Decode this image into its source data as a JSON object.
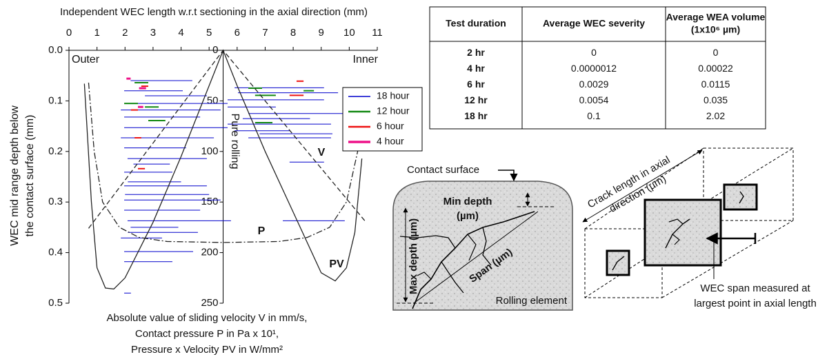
{
  "chart_data": [
    {
      "type": "segment",
      "xlabel": "Independent WEC length w.r.t sectioning in the axial direction (mm)",
      "ylabel": [
        "WEC mid range depth below",
        "the contact surface (mm)"
      ],
      "xlim": [
        0,
        11
      ],
      "xticks": [
        0,
        1,
        2,
        3,
        4,
        5,
        6,
        7,
        8,
        9,
        10,
        11
      ],
      "ylim": [
        0,
        0.5
      ],
      "yticks": [
        {
          "value": 0,
          "label": "0.0"
        },
        0.1,
        0.2,
        0.3,
        0.4,
        0.5
      ],
      "annotations": [
        "Outer",
        "Inner",
        "Pure rolling"
      ],
      "legend": "upper right",
      "series": [
        {
          "name": "18 hour",
          "color": "#0000cc",
          "line_width": 1,
          "x_start": [
            1.97,
            2.71,
            2.09,
            1.85,
            1.97,
            1.97,
            1.85,
            1.97,
            2.09,
            1.97,
            1.97,
            1.97,
            1.97,
            2.09,
            1.85,
            1.97,
            1.97,
            1.97,
            5.91,
            6.03,
            5.66,
            5.66,
            6.4,
            5.66,
            5.91,
            6.4,
            7.87,
            7.63,
            2.2,
            2.3,
            2.1,
            2.0,
            2.2,
            2.1,
            6.2,
            6.8
          ],
          "x_end": [
            4.06,
            4.92,
            5.66,
            5.41,
            4.68,
            5.66,
            5.17,
            4.18,
            4.92,
            3.69,
            4.92,
            5.41,
            4.68,
            5.78,
            3.32,
            4.43,
            3.69,
            2.21,
            9.1,
            9.6,
            9.1,
            7.38,
            9.84,
            9.35,
            7.87,
            9.35,
            9.1,
            9.84,
            4.4,
            3.6,
            4.0,
            5.0,
            3.9,
            4.6,
            8.6,
            9.4
          ],
          "values": [
            0.08,
            0.09,
            0.105,
            0.118,
            0.132,
            0.153,
            0.173,
            0.193,
            0.214,
            0.241,
            0.268,
            0.296,
            0.316,
            0.337,
            0.371,
            0.398,
            0.418,
            0.48,
            0.074,
            0.084,
            0.098,
            0.112,
            0.125,
            0.146,
            0.159,
            0.173,
            0.221,
            0.337,
            0.06,
            0.225,
            0.26,
            0.285,
            0.35,
            0.36,
            0.135,
            0.165
          ]
        },
        {
          "name": "12 hour",
          "color": "#118811",
          "line_width": 2,
          "x_start": [
            6.4,
            6.64,
            6.64,
            1.97,
            2.71,
            2.83,
            8.37,
            2.34
          ],
          "x_end": [
            6.89,
            7.38,
            7.26,
            2.46,
            3.2,
            3.44,
            8.74,
            2.83
          ],
          "values": [
            0.075,
            0.089,
            0.143,
            0.105,
            0.112,
            0.139,
            0.08,
            0.064
          ]
        },
        {
          "name": "6 hour",
          "color": "#ee1111",
          "line_width": 2,
          "x_start": [
            8.12,
            7.87,
            2.34,
            2.46,
            2.58,
            2.21
          ],
          "x_end": [
            8.37,
            8.37,
            2.58,
            2.71,
            2.83,
            2.46
          ],
          "values": [
            0.061,
            0.089,
            0.173,
            0.234,
            0.071,
            0.118
          ]
        },
        {
          "name": "4 hour",
          "color": "#ee1188",
          "line_width": 3,
          "x_start": [
            2.05,
            2.5,
            2.46
          ],
          "x_end": [
            2.2,
            2.75,
            2.65
          ],
          "values": [
            0.056,
            0.075,
            0.112
          ]
        }
      ]
    },
    {
      "type": "line",
      "ylabel": [
        "Absolute value of sliding velocity V in mm/s,",
        "Contact pressure P in Pa x 10¹,",
        "Pressure x Velocity PV in W/mm²"
      ],
      "xlim": [
        0,
        11
      ],
      "ylim": [
        0,
        250
      ],
      "yticks": [
        0,
        50,
        100,
        150,
        200,
        250
      ],
      "series": [
        {
          "name": "V",
          "color": "#222222",
          "linestyle": "dashed",
          "x": [
            0.7,
            5.5,
            10.6
          ],
          "values": [
            176,
            0,
            170
          ]
        },
        {
          "name": "P",
          "color": "#222222",
          "linestyle": "dashdot",
          "x": [
            0.7,
            0.9,
            1.2,
            1.8,
            2.5,
            3.5,
            5.5,
            7.5,
            8.5,
            9.3,
            9.9,
            10.3,
            10.5
          ],
          "values": [
            32,
            100,
            150,
            175,
            185,
            189,
            190,
            189,
            185,
            175,
            150,
            100,
            60
          ]
        },
        {
          "name": "PV",
          "color": "#222222",
          "linestyle": "solid",
          "x": [
            0.55,
            0.8,
            1.0,
            1.3,
            1.6,
            2.0,
            3,
            4,
            5,
            5.5,
            6,
            7,
            8,
            9,
            9.5,
            9.9,
            10.2,
            10.45
          ],
          "values": [
            33,
            150,
            215,
            235,
            236,
            225,
            170,
            105,
            35,
            0,
            35,
            100,
            160,
            220,
            228,
            215,
            180,
            107
          ]
        }
      ]
    }
  ],
  "table": {
    "header": [
      [
        "Test duration"
      ],
      [
        "Average WEC severity"
      ],
      [
        "Average WEA volume",
        "(1x10⁶ µm)"
      ]
    ],
    "rows": [
      [
        "2 hr",
        "0",
        "0"
      ],
      [
        "4 hr",
        "0.0000012",
        "0.00022"
      ],
      [
        "6 hr",
        "0.0029",
        "0.0115"
      ],
      [
        "12 hr",
        "0.0054",
        "0.035"
      ],
      [
        "18 hr",
        "0.1",
        "2.02"
      ]
    ]
  },
  "diagram": {
    "contact_surface": "Contact surface",
    "min_depth": [
      "Min depth",
      "(µm)"
    ],
    "max_depth": "Max depth (µm)",
    "span": "Span (µm)",
    "rolling_element": "Rolling element",
    "crack_length": [
      "Crack length in axial",
      "direction (µm)"
    ],
    "wec_span": [
      "WEC span measured at",
      "largest point in axial length"
    ]
  }
}
